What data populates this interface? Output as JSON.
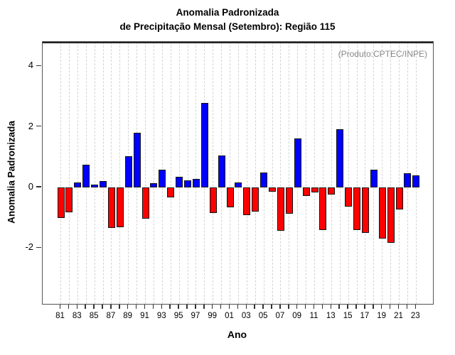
{
  "title": {
    "line1": "Anomalia Padronizada",
    "line2": "de Precipitação Mensal (Setembro): Região 115"
  },
  "annotation": "(Produto:CPTEC/INPE)",
  "axes": {
    "y_label": "Anomalia Padronizada",
    "x_label": "Ano",
    "y_ticks": [
      4,
      2,
      0,
      -2
    ]
  },
  "colors": {
    "positive": "#0000ff",
    "negative": "#ff0000",
    "bar_border": "#111111",
    "grid": "#d4d4d4",
    "annotation_gray": "#888888"
  },
  "chart_data": {
    "type": "bar",
    "title": "Anomalia Padronizada de Precipitação Mensal (Setembro): Região 115",
    "xlabel": "Ano",
    "ylabel": "Anomalia Padronizada",
    "ylim": [
      -3.85,
      4.8
    ],
    "grid": "vertical-dashed",
    "legend": "none",
    "annotation": "(Produto:CPTEC/INPE)",
    "x_tick_labels_shown": [
      "81",
      "83",
      "85",
      "87",
      "89",
      "91",
      "93",
      "95",
      "97",
      "99",
      "01",
      "03",
      "05",
      "07",
      "09",
      "11",
      "13",
      "15",
      "17",
      "19",
      "21",
      "23"
    ],
    "categories": [
      "81",
      "82",
      "83",
      "84",
      "85",
      "86",
      "87",
      "88",
      "89",
      "90",
      "91",
      "92",
      "93",
      "94",
      "95",
      "96",
      "97",
      "98",
      "99",
      "00",
      "01",
      "02",
      "03",
      "04",
      "05",
      "06",
      "07",
      "08",
      "09",
      "10",
      "11",
      "12",
      "13",
      "14",
      "15",
      "16",
      "17",
      "18",
      "19",
      "20",
      "21",
      "22",
      "23"
    ],
    "values": [
      -1.0,
      -0.83,
      0.17,
      0.75,
      0.1,
      0.22,
      -1.33,
      -1.31,
      1.02,
      1.8,
      -1.02,
      0.14,
      0.59,
      -0.32,
      0.36,
      0.23,
      0.28,
      2.8,
      -0.84,
      1.05,
      -0.66,
      0.17,
      -0.91,
      -0.79,
      0.5,
      -0.14,
      -1.42,
      -0.87,
      1.61,
      -0.29,
      -0.17,
      -1.4,
      -0.23,
      1.93,
      -0.63,
      -1.41,
      -1.51,
      0.59,
      -1.69,
      -1.83,
      -0.72,
      0.47,
      0.4
    ]
  }
}
